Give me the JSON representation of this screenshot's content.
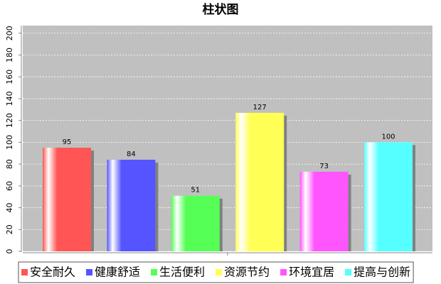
{
  "chart_data": {
    "type": "bar",
    "title": "柱状图",
    "categories": [
      null
    ],
    "series": [
      {
        "name": "安全耐久",
        "color": "#ff5555",
        "values": [
          95
        ]
      },
      {
        "name": "健康舒适",
        "color": "#5555ff",
        "values": [
          84
        ]
      },
      {
        "name": "生活便利",
        "color": "#55ff55",
        "values": [
          51
        ]
      },
      {
        "name": "资源节约",
        "color": "#ffff55",
        "values": [
          127
        ]
      },
      {
        "name": "环境宜居",
        "color": "#ff55ff",
        "values": [
          73
        ]
      },
      {
        "name": "提高与创新",
        "color": "#55ffff",
        "values": [
          100
        ]
      }
    ],
    "ylim": [
      0,
      207
    ],
    "yticks": [
      0,
      20,
      40,
      60,
      80,
      100,
      120,
      140,
      160,
      180,
      200
    ],
    "grid": true
  }
}
